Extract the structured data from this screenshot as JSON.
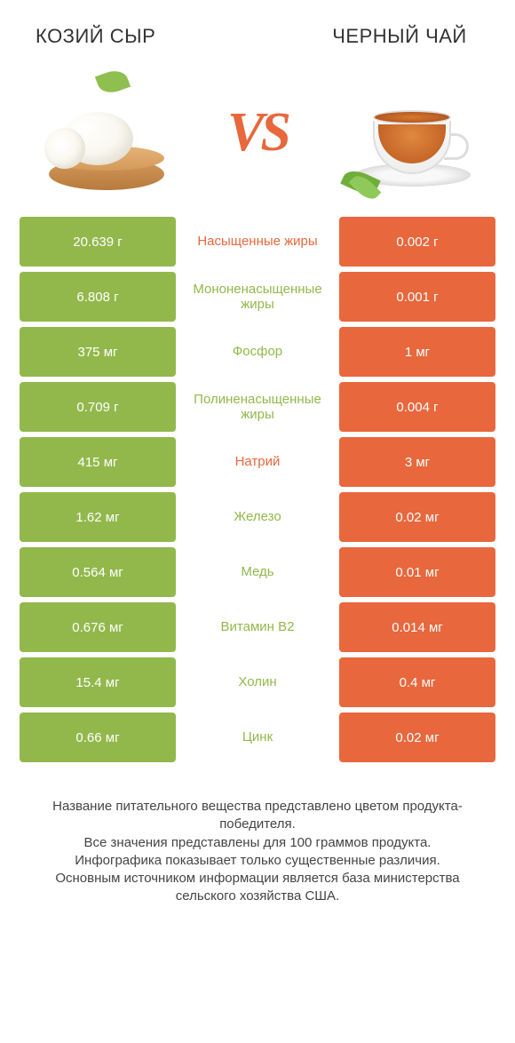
{
  "colors": {
    "left": "#92b84b",
    "right": "#e8673c",
    "vs": "#e8673c",
    "background": "#ffffff",
    "row_gap": 6
  },
  "header": {
    "left_title": "КОЗИЙ СЫР",
    "right_title": "ЧЕРНЫЙ ЧАЙ",
    "vs_label": "VS"
  },
  "table": {
    "type": "comparison-table",
    "columns": [
      "left_value",
      "nutrient",
      "right_value"
    ],
    "rows": [
      {
        "left": "20.639 г",
        "name": "Насыщенные жиры",
        "right": "0.002 г",
        "name_color": "right"
      },
      {
        "left": "6.808 г",
        "name": "Мононенасыщенные жиры",
        "right": "0.001 г",
        "name_color": "left"
      },
      {
        "left": "375 мг",
        "name": "Фосфор",
        "right": "1 мг",
        "name_color": "left"
      },
      {
        "left": "0.709 г",
        "name": "Полиненасыщенные жиры",
        "right": "0.004 г",
        "name_color": "left"
      },
      {
        "left": "415 мг",
        "name": "Натрий",
        "right": "3 мг",
        "name_color": "right"
      },
      {
        "left": "1.62 мг",
        "name": "Железо",
        "right": "0.02 мг",
        "name_color": "left"
      },
      {
        "left": "0.564 мг",
        "name": "Медь",
        "right": "0.01 мг",
        "name_color": "left"
      },
      {
        "left": "0.676 мг",
        "name": "Витамин B2",
        "right": "0.014 мг",
        "name_color": "left"
      },
      {
        "left": "15.4 мг",
        "name": "Холин",
        "right": "0.4 мг",
        "name_color": "left"
      },
      {
        "left": "0.66 мг",
        "name": "Цинк",
        "right": "0.02 мг",
        "name_color": "left"
      }
    ]
  },
  "footer": {
    "line1": "Название питательного вещества представлено цветом продукта-победителя.",
    "line2": "Все значения представлены для 100 граммов продукта.",
    "line3": "Инфографика показывает только существенные различия.",
    "line4": "Основным источником информации является база министерства сельского хозяйства США."
  }
}
